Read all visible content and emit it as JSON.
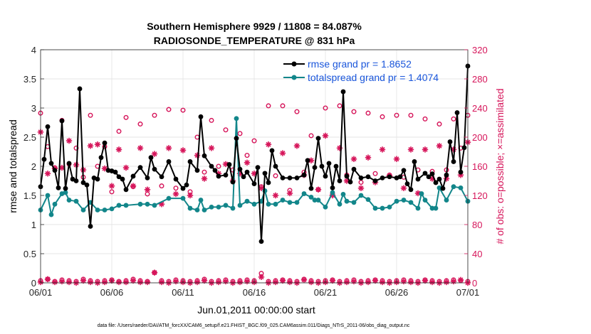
{
  "chart_data": {
    "type": "line",
    "title_line1": "Southern Hemisphere 9929 / 11808 = 84.087%",
    "title_line2": "RADIOSONDE_TEMPERATURE @ 831 hPa",
    "xlabel": "Jun.01,2011 00:00:00 start",
    "ylabel_left": "rmse and totalspread",
    "ylabel_right": "# of obs: o=possible; ×=assimilated",
    "x_ticks": [
      "06/01",
      "06/06",
      "06/11",
      "06/16",
      "06/21",
      "06/26",
      "07/01"
    ],
    "x_range_days": [
      0,
      30
    ],
    "ylim_left": [
      0,
      4
    ],
    "y_ticks_left": [
      "0",
      "0.5",
      "1",
      "1.5",
      "2",
      "2.5",
      "3",
      "3.5",
      "4"
    ],
    "ylim_right": [
      0,
      320
    ],
    "y_ticks_right": [
      "0",
      "40",
      "80",
      "120",
      "160",
      "200",
      "240",
      "280",
      "320"
    ],
    "footnote": "data file: /Users/raeder/DAI/ATM_forcXX/CAM6_setup/f.e21.FHIST_BGC.f09_025.CAM6assim.011/Diags_NTrS_2011-06/obs_diag_output.nc",
    "colors": {
      "rmse": "#000000",
      "spread": "#12868a",
      "obs": "#d6155a",
      "legend_text": "#1a56db"
    },
    "series": [
      {
        "name": "rmse grand pr = 1.8652",
        "axis": "left",
        "x": [
          0.0,
          0.25,
          0.5,
          0.75,
          1.0,
          1.25,
          1.5,
          1.75,
          2.0,
          2.25,
          2.5,
          2.75,
          3.0,
          3.25,
          3.5,
          3.75,
          4.0,
          4.25,
          4.5,
          4.75,
          5.0,
          5.25,
          5.5,
          5.75,
          6.0,
          6.5,
          7.0,
          7.5,
          7.75,
          8.0,
          8.5,
          9.0,
          9.5,
          10.0,
          10.25,
          10.5,
          11.0,
          11.25,
          11.5,
          12.0,
          12.25,
          12.5,
          13.0,
          13.25,
          13.5,
          13.75,
          14.0,
          14.25,
          14.5,
          15.0,
          15.25,
          15.5,
          15.75,
          16.0,
          16.25,
          16.5,
          17.0,
          17.5,
          18.0,
          18.5,
          18.75,
          19.0,
          19.25,
          19.5,
          19.75,
          20.0,
          20.25,
          20.5,
          20.75,
          21.0,
          21.25,
          21.5,
          21.75,
          22.0,
          22.5,
          23.0,
          23.5,
          24.0,
          24.5,
          25.0,
          25.25,
          25.5,
          25.75,
          26.0,
          26.25,
          26.5,
          27.0,
          27.25,
          27.5,
          27.75,
          28.0,
          28.25,
          28.5,
          28.75,
          29.0,
          29.25,
          29.5,
          29.75,
          30.0
        ],
        "values": [
          1.65,
          2.12,
          2.68,
          2.05,
          1.93,
          1.63,
          2.78,
          1.62,
          2.05,
          1.78,
          1.75,
          3.33,
          1.72,
          1.68,
          0.97,
          1.8,
          1.78,
          2.15,
          2.4,
          1.93,
          1.92,
          1.9,
          1.82,
          1.78,
          1.6,
          1.83,
          1.98,
          1.8,
          2.15,
          1.95,
          1.82,
          2.08,
          1.78,
          1.62,
          1.68,
          2.08,
          1.93,
          2.85,
          2.18,
          2.0,
          1.93,
          1.83,
          1.85,
          2.03,
          1.73,
          2.48,
          1.95,
          1.82,
          1.9,
          1.7,
          1.98,
          0.71,
          1.88,
          1.72,
          2.27,
          2.0,
          1.8,
          1.8,
          1.8,
          1.85,
          2.1,
          1.62,
          1.98,
          2.48,
          2.0,
          1.83,
          2.05,
          1.63,
          2.0,
          1.75,
          3.28,
          1.83,
          1.73,
          1.95,
          1.8,
          1.82,
          1.75,
          1.8,
          1.82,
          1.8,
          1.82,
          1.93,
          1.7,
          1.6,
          2.08,
          1.78,
          1.88,
          1.82,
          1.87,
          1.72,
          1.78,
          1.62,
          1.85,
          2.42,
          2.08,
          2.92,
          1.9,
          2.32,
          3.72
        ]
      },
      {
        "name": "totalspread grand pr = 1.4074",
        "axis": "left",
        "x": [
          0.0,
          0.5,
          0.75,
          1.0,
          1.5,
          1.75,
          2.0,
          2.5,
          3.0,
          3.5,
          4.0,
          4.5,
          5.0,
          5.5,
          6.0,
          7.0,
          7.5,
          8.0,
          9.0,
          10.0,
          10.5,
          11.0,
          11.25,
          11.5,
          12.0,
          12.5,
          13.0,
          13.5,
          13.75,
          14.0,
          14.5,
          15.0,
          15.5,
          15.75,
          16.0,
          16.5,
          17.0,
          17.5,
          18.0,
          18.5,
          19.0,
          19.25,
          19.5,
          20.0,
          20.5,
          21.0,
          21.25,
          21.5,
          22.0,
          22.5,
          23.0,
          23.5,
          24.0,
          24.5,
          25.0,
          25.5,
          26.0,
          26.5,
          26.75,
          27.0,
          27.5,
          27.75,
          28.0,
          28.5,
          29.0,
          29.5,
          30.0
        ],
        "values": [
          1.25,
          1.5,
          1.17,
          1.35,
          1.53,
          1.55,
          1.42,
          1.4,
          1.25,
          1.38,
          1.25,
          1.25,
          1.27,
          1.33,
          1.33,
          1.35,
          1.35,
          1.33,
          1.45,
          1.45,
          1.28,
          1.25,
          1.42,
          1.25,
          1.3,
          1.3,
          1.33,
          1.28,
          2.82,
          1.33,
          1.4,
          1.35,
          1.4,
          1.58,
          1.35,
          1.35,
          1.42,
          1.38,
          1.38,
          1.53,
          1.47,
          1.42,
          1.42,
          1.3,
          1.55,
          1.35,
          1.52,
          1.4,
          1.38,
          1.5,
          1.43,
          1.28,
          1.28,
          1.3,
          1.4,
          1.42,
          1.38,
          1.28,
          1.53,
          1.42,
          1.28,
          1.28,
          1.63,
          1.42,
          1.65,
          1.63,
          1.4
        ]
      },
      {
        "name": "# obs possible",
        "axis": "right",
        "marker": "o",
        "x": [
          0.0,
          0.5,
          1.0,
          1.5,
          2.0,
          2.5,
          3.0,
          3.5,
          4.0,
          4.5,
          5.0,
          5.5,
          6.0,
          6.5,
          7.0,
          7.5,
          8.0,
          8.5,
          9.0,
          9.5,
          10.0,
          10.5,
          11.0,
          11.5,
          12.0,
          12.5,
          13.0,
          13.5,
          14.0,
          14.5,
          15.0,
          15.5,
          16.0,
          16.5,
          17.0,
          17.5,
          18.0,
          18.5,
          19.0,
          19.5,
          20.0,
          20.5,
          21.0,
          21.5,
          22.0,
          22.5,
          23.0,
          23.5,
          24.0,
          24.5,
          25.0,
          25.5,
          26.0,
          26.5,
          27.0,
          27.5,
          28.0,
          28.5,
          29.0,
          29.5,
          30.0
        ],
        "values": [
          233,
          187,
          158,
          223,
          163,
          185,
          145,
          230,
          160,
          187,
          125,
          208,
          227,
          132,
          218,
          122,
          230,
          133,
          238,
          130,
          237,
          125,
          200,
          152,
          223,
          160,
          210,
          155,
          205,
          175,
          195,
          132,
          243,
          147,
          243,
          127,
          235,
          152,
          202,
          128,
          240,
          122,
          243,
          148,
          235,
          138,
          233,
          150,
          228,
          148,
          230,
          145,
          230,
          155,
          225,
          153,
          218,
          155,
          225,
          185,
          230
        ]
      },
      {
        "name": "# obs assimilated",
        "axis": "right",
        "marker": "*",
        "x": [
          0.0,
          0.5,
          1.0,
          1.5,
          2.0,
          2.5,
          3.0,
          3.5,
          4.0,
          4.5,
          5.0,
          5.5,
          6.0,
          6.5,
          7.0,
          7.5,
          8.0,
          8.5,
          9.0,
          9.5,
          10.0,
          10.5,
          11.0,
          11.5,
          12.0,
          12.5,
          13.0,
          13.5,
          14.0,
          14.5,
          15.0,
          15.5,
          16.0,
          16.5,
          17.0,
          17.5,
          18.0,
          18.5,
          19.0,
          19.5,
          20.0,
          20.5,
          21.0,
          21.5,
          22.0,
          22.5,
          23.0,
          23.5,
          24.0,
          24.5,
          25.0,
          25.5,
          26.0,
          26.5,
          27.0,
          27.5,
          28.0,
          28.5,
          29.0,
          29.5,
          30.0
        ],
        "values": [
          207,
          150,
          157,
          158,
          195,
          162,
          155,
          188,
          190,
          157,
          133,
          183,
          158,
          133,
          185,
          128,
          177,
          108,
          185,
          122,
          182,
          120,
          175,
          143,
          185,
          150,
          163,
          140,
          150,
          165,
          150,
          130,
          190,
          120,
          178,
          123,
          188,
          148,
          168,
          128,
          202,
          120,
          185,
          140,
          170,
          130,
          172,
          138,
          183,
          147,
          170,
          130,
          183,
          123,
          183,
          143,
          188,
          143,
          183,
          148,
          193
        ]
      },
      {
        "name": "# obs low possible",
        "axis": "right",
        "marker": "o",
        "x": [
          0.0,
          0.5,
          1.0,
          1.5,
          2.0,
          2.5,
          3.0,
          3.5,
          4.0,
          4.5,
          5.0,
          5.5,
          6.0,
          6.5,
          7.0,
          7.5,
          8.0,
          8.5,
          9.0,
          9.5,
          10.0,
          10.5,
          11.0,
          11.5,
          12.0,
          12.5,
          13.0,
          13.5,
          14.0,
          14.5,
          15.0,
          15.5,
          16.0,
          16.5,
          17.0,
          17.5,
          18.0,
          18.5,
          19.0,
          19.5,
          20.0,
          20.5,
          21.0,
          21.5,
          22.0,
          22.5,
          23.0,
          23.5,
          24.0,
          24.5,
          25.0,
          25.5,
          26.0,
          26.5,
          27.0,
          27.5,
          28.0,
          28.5,
          29.0,
          29.5,
          30.0
        ],
        "values": [
          3,
          5,
          2,
          4,
          3,
          2,
          5,
          3,
          2,
          3,
          4,
          2,
          3,
          5,
          3,
          2,
          14,
          3,
          2,
          4,
          3,
          2,
          3,
          5,
          2,
          3,
          4,
          2,
          3,
          4,
          3,
          13,
          2,
          3,
          4,
          3,
          2,
          5,
          3,
          2,
          3,
          4,
          2,
          3,
          4,
          2,
          3,
          4,
          3,
          2,
          3,
          4,
          3,
          2,
          4,
          3,
          2,
          3,
          4,
          3,
          2
        ]
      },
      {
        "name": "# obs low assimilated",
        "axis": "right",
        "marker": "*",
        "x": [
          0.0,
          0.5,
          1.0,
          1.5,
          2.0,
          2.5,
          3.0,
          3.5,
          4.0,
          4.5,
          5.0,
          5.5,
          6.0,
          6.5,
          7.0,
          7.5,
          8.0,
          8.5,
          9.0,
          9.5,
          10.0,
          10.5,
          11.0,
          11.5,
          12.0,
          12.5,
          13.0,
          13.5,
          14.0,
          14.5,
          15.0,
          15.5,
          16.0,
          16.5,
          17.0,
          17.5,
          18.0,
          18.5,
          19.0,
          19.5,
          20.0,
          20.5,
          21.0,
          21.5,
          22.0,
          22.5,
          23.0,
          23.5,
          24.0,
          24.5,
          25.0,
          25.5,
          26.0,
          26.5,
          27.0,
          27.5,
          28.0,
          28.5,
          29.0,
          29.5,
          30.0
        ],
        "values": [
          1,
          5,
          1,
          2,
          1,
          0,
          3,
          1,
          0,
          1,
          3,
          1,
          1,
          3,
          1,
          1,
          14,
          1,
          0,
          2,
          1,
          0,
          1,
          3,
          0,
          1,
          2,
          0,
          1,
          2,
          1,
          8,
          0,
          1,
          3,
          1,
          0,
          4,
          1,
          0,
          1,
          3,
          0,
          1,
          2,
          0,
          1,
          3,
          1,
          0,
          1,
          2,
          1,
          0,
          3,
          1,
          0,
          1,
          2,
          4,
          0
        ]
      }
    ],
    "legend": [
      {
        "label": "rmse grand pr = 1.8652",
        "color": "#000000"
      },
      {
        "label": "totalspread grand pr = 1.4074",
        "color": "#12868a"
      }
    ]
  }
}
